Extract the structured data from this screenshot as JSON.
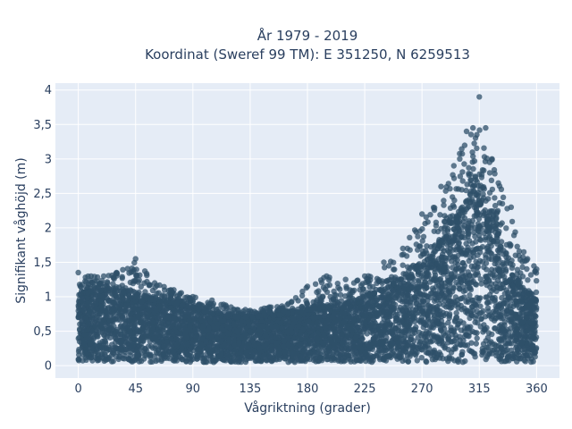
{
  "chart_data": {
    "type": "scatter",
    "title_line1": "År 1979 - 2019",
    "title_line2": "Koordinat (Sweref 99 TM): E 351250, N 6259513",
    "xlabel": "Vågriktning (grader)",
    "ylabel": "Signifikant våghöjd (m)",
    "xlim": [
      -18,
      378
    ],
    "ylim": [
      -0.18,
      4.1
    ],
    "x_ticks": [
      0,
      45,
      90,
      135,
      180,
      225,
      270,
      315,
      360
    ],
    "x_tick_labels": [
      "0",
      "45",
      "90",
      "135",
      "180",
      "225",
      "270",
      "315",
      "360"
    ],
    "y_ticks": [
      0,
      0.5,
      1,
      1.5,
      2,
      2.5,
      3,
      3.5,
      4
    ],
    "y_tick_labels": [
      "0",
      "0,5",
      "1",
      "1,5",
      "2",
      "2,5",
      "3",
      "3,5",
      "4"
    ],
    "grid": true,
    "marker_color": "#2f5069",
    "plot_background": "#e5ecf6",
    "envelope": {
      "x": [
        0,
        10,
        20,
        30,
        45,
        60,
        75,
        90,
        105,
        120,
        135,
        150,
        165,
        180,
        195,
        210,
        225,
        240,
        255,
        270,
        285,
        295,
        305,
        310,
        315,
        320,
        325,
        330,
        340,
        350,
        360
      ],
      "y_min": [
        0.05,
        0.05,
        0.05,
        0.05,
        0.05,
        0.05,
        0.05,
        0.05,
        0.05,
        0.05,
        0.05,
        0.05,
        0.05,
        0.05,
        0.05,
        0.05,
        0.05,
        0.05,
        0.05,
        0.05,
        0.05,
        0.05,
        0.05,
        0.05,
        0.05,
        0.05,
        0.05,
        0.05,
        0.05,
        0.05,
        0.05
      ],
      "y_dense_max": [
        1.05,
        1.05,
        1.1,
        1.05,
        1.0,
        0.95,
        0.9,
        0.85,
        0.75,
        0.7,
        0.7,
        0.72,
        0.75,
        0.8,
        0.85,
        0.9,
        1.0,
        1.1,
        1.25,
        1.45,
        1.75,
        2.05,
        2.4,
        2.6,
        2.7,
        2.5,
        2.2,
        1.9,
        1.45,
        1.1,
        0.95
      ],
      "y_max": [
        1.35,
        1.3,
        1.3,
        1.35,
        1.55,
        1.2,
        1.1,
        1.0,
        0.95,
        0.85,
        0.8,
        0.85,
        0.9,
        1.15,
        1.3,
        1.25,
        1.3,
        1.5,
        1.7,
        2.2,
        2.6,
        2.9,
        3.4,
        3.45,
        3.9,
        3.45,
        3.0,
        2.65,
        2.3,
        1.65,
        1.4
      ]
    }
  }
}
